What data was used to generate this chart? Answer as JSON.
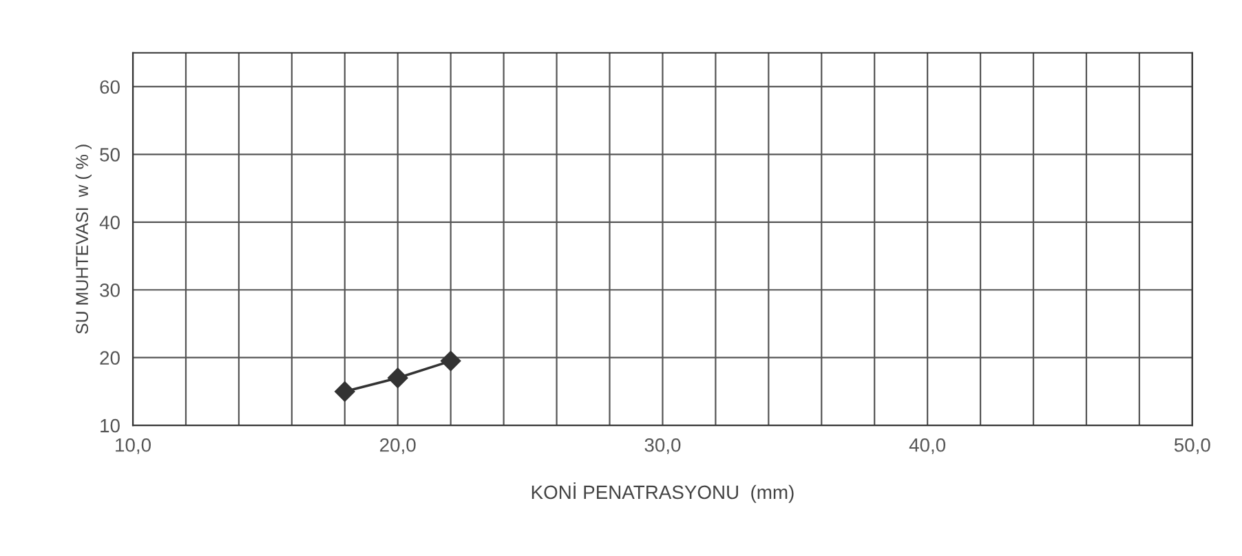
{
  "chart_data": {
    "type": "line",
    "xlabel": "KONİ PENATRASYONU  (mm)",
    "ylabel": "SU MUHTEVASI  w ( % )",
    "x": [
      18,
      20,
      22
    ],
    "series": [
      {
        "color": "#333333",
        "values": [
          15,
          17,
          19.5
        ]
      }
    ],
    "marker": "diamond",
    "line_style": "solid",
    "xlim": [
      10,
      50
    ],
    "ylim": [
      10,
      65
    ],
    "xticks": [
      {
        "value": 10,
        "label": "10,0"
      },
      {
        "value": 12,
        "label": null
      },
      {
        "value": 14,
        "label": null
      },
      {
        "value": 16,
        "label": null
      },
      {
        "value": 18,
        "label": null
      },
      {
        "value": 20,
        "label": "20,0"
      },
      {
        "value": 22,
        "label": null
      },
      {
        "value": 24,
        "label": null
      },
      {
        "value": 26,
        "label": null
      },
      {
        "value": 28,
        "label": null
      },
      {
        "value": 30,
        "label": "30,0"
      },
      {
        "value": 32,
        "label": null
      },
      {
        "value": 34,
        "label": null
      },
      {
        "value": 36,
        "label": null
      },
      {
        "value": 38,
        "label": null
      },
      {
        "value": 40,
        "label": "40,0"
      },
      {
        "value": 42,
        "label": null
      },
      {
        "value": 44,
        "label": null
      },
      {
        "value": 46,
        "label": null
      },
      {
        "value": 48,
        "label": null
      },
      {
        "value": 50,
        "label": "50,0"
      }
    ],
    "yticks": [
      10,
      20,
      30,
      40,
      50,
      60
    ],
    "grid": true
  }
}
